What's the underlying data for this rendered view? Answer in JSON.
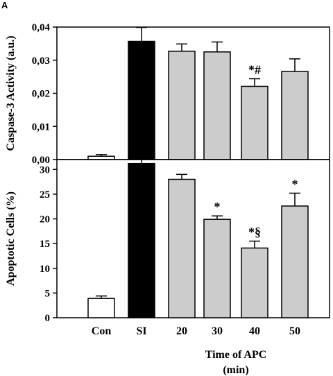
{
  "panel_label": "A",
  "xlabel_line1": "Time of APC",
  "xlabel_line2": "(min)",
  "colors": {
    "con": "#ffffff",
    "si": "#000000",
    "apc": "#cccccc",
    "axis": "#000000"
  },
  "chart_data": [
    {
      "type": "bar",
      "ylabel": "Caspase-3 Activity (a.u.)",
      "categories": [
        "Con",
        "SI",
        "20",
        "30",
        "40",
        "50"
      ],
      "values": [
        0.001,
        0.0357,
        0.0327,
        0.0325,
        0.0221,
        0.0266
      ],
      "errors": [
        0.0005,
        0.0042,
        0.0022,
        0.003,
        0.0023,
        0.0038
      ],
      "annotations": [
        "",
        "",
        "",
        "",
        "*#",
        ""
      ],
      "ylim": [
        0,
        0.04
      ],
      "yticks": [
        0,
        0.01,
        0.02,
        0.03,
        0.04
      ],
      "ytick_labels": [
        "0,00",
        "0,01",
        "0,02",
        "0,03",
        "0,04"
      ]
    },
    {
      "type": "bar",
      "ylabel": "Apoptotic Cells (%)",
      "categories": [
        "Con",
        "SI",
        "20",
        "30",
        "40",
        "50"
      ],
      "values": [
        3.9,
        31.2,
        28.0,
        19.9,
        14.1,
        22.6
      ],
      "errors": [
        0.5,
        1.3,
        1.0,
        0.7,
        1.4,
        2.6
      ],
      "annotations": [
        "",
        "",
        "",
        "*",
        "*§",
        "*"
      ],
      "ylim": [
        0,
        32
      ],
      "yticks": [
        0,
        5,
        10,
        15,
        20,
        25,
        30
      ],
      "ytick_labels": [
        "0",
        "5",
        "10",
        "15",
        "20",
        "25",
        "30"
      ]
    }
  ]
}
